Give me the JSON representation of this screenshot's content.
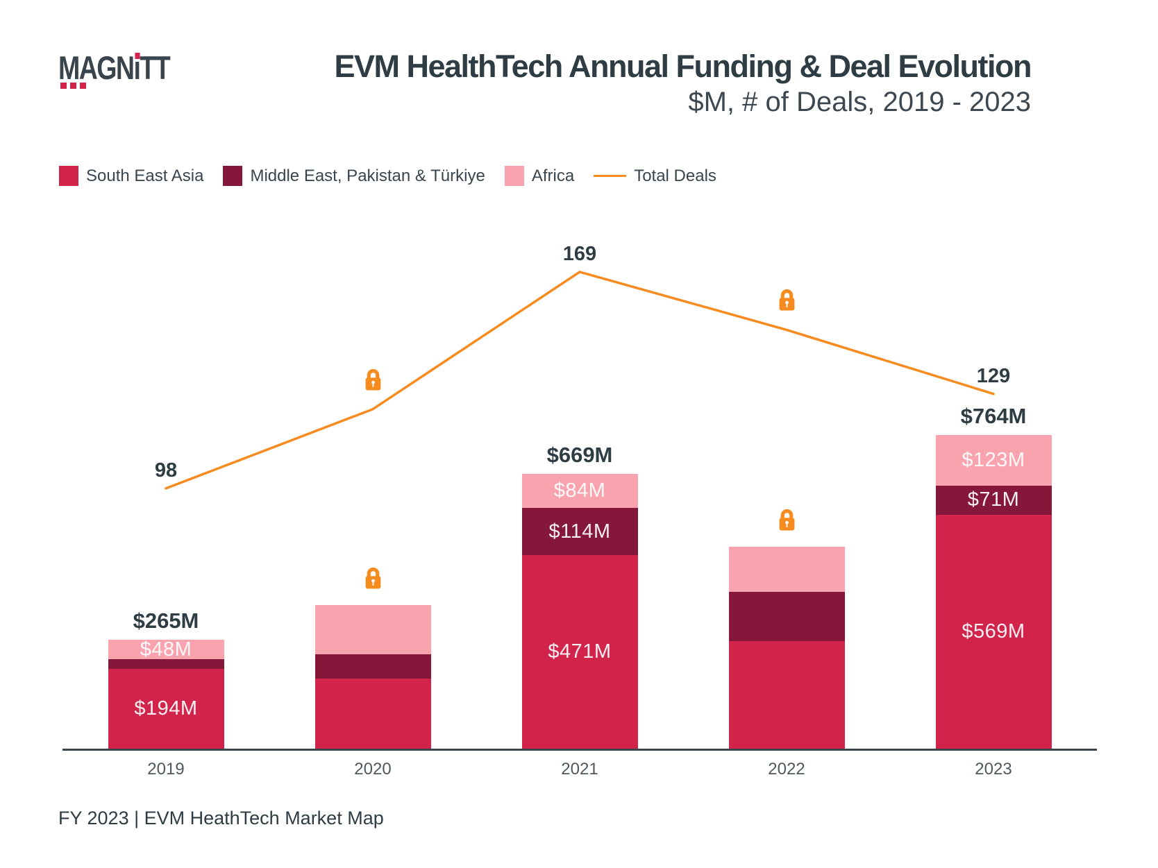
{
  "header": {
    "logo_text": "MAGNiTT",
    "title": "EVM HealthTech Annual Funding & Deal Evolution",
    "subtitle": "$M, # of Deals, 2019 - 2023"
  },
  "legend": {
    "items": [
      {
        "label": "South East Asia",
        "color": "#D2234B",
        "type": "swatch"
      },
      {
        "label": "Middle East, Pakistan & Türkiye",
        "color": "#84173A",
        "type": "swatch"
      },
      {
        "label": "Africa",
        "color": "#F9A3AE",
        "type": "swatch"
      },
      {
        "label": "Total Deals",
        "color": "#F68B1F",
        "type": "line"
      }
    ]
  },
  "footer": {
    "text": "FY 2023 | EVM HeathTech Market Map"
  },
  "colors": {
    "south_east_asia": "#D2234B",
    "middle_east_pakistan_turkiye": "#84173A",
    "africa": "#F9A3AE",
    "total_deals_line": "#F68B1F",
    "lock": "#F68B1F",
    "text_dark": "#2E3C44",
    "axis": "#3A444C"
  },
  "chart_data": {
    "type": "bar",
    "subtype": "stacked-bar-with-line",
    "title": "EVM HealthTech Annual Funding & Deal Evolution",
    "subtitle": "$M, # of Deals, 2019 - 2023",
    "categories": [
      "2019",
      "2020",
      "2021",
      "2022",
      "2023"
    ],
    "bar_unit": "USD millions",
    "series": [
      {
        "name": "South East Asia",
        "color": "#D2234B",
        "values": [
          194,
          170,
          471,
          262,
          569
        ],
        "value_labels": [
          "$194M",
          null,
          "$471M",
          null,
          "$569M"
        ]
      },
      {
        "name": "Middle East, Pakistan & Türkiye",
        "color": "#84173A",
        "values": [
          23,
          59,
          114,
          120,
          71
        ],
        "value_labels": [
          null,
          null,
          "$114M",
          null,
          "$71M"
        ]
      },
      {
        "name": "Africa",
        "color": "#F9A3AE",
        "values": [
          48,
          120,
          84,
          110,
          123
        ],
        "value_labels": [
          "$48M",
          null,
          "$84M",
          null,
          "$123M"
        ]
      }
    ],
    "totals": {
      "values": [
        265,
        349,
        669,
        492,
        764
      ],
      "labels": [
        "$265M",
        null,
        "$669M",
        null,
        "$764M"
      ]
    },
    "line": {
      "name": "Total Deals",
      "color": "#F68B1F",
      "values": [
        98,
        124,
        169,
        150,
        129
      ],
      "labels": [
        "98",
        null,
        "169",
        null,
        "129"
      ]
    },
    "locked": [
      false,
      true,
      false,
      true,
      false
    ],
    "locked_note": "2020 and 2022 values are hidden behind orange lock icons; their numeric values are estimated from bar/line geometry",
    "legend_position": "top-left",
    "grid": false,
    "ylim_bar_musd": [
      0,
      800
    ],
    "ylim_line_deals": [
      0,
      180
    ]
  }
}
